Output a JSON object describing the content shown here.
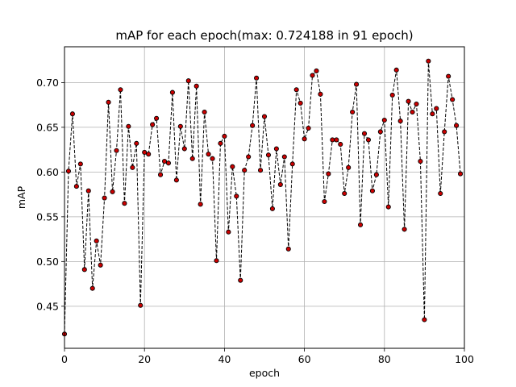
{
  "chart_data": {
    "type": "line",
    "title": "mAP for each epoch(max: 0.724188 in 91 epoch)",
    "xlabel": "epoch",
    "ylabel": "mAP",
    "xlim": [
      0,
      100
    ],
    "ylim": [
      0.403,
      0.74
    ],
    "xticks": [
      0,
      20,
      40,
      60,
      80,
      100
    ],
    "yticks": [
      0.45,
      0.5,
      0.55,
      0.6,
      0.65,
      0.7
    ],
    "grid": true,
    "series": [
      {
        "line_color": "#000000",
        "line_style": "dashed",
        "marker_face": "#cc0000",
        "marker_edge": "#000000",
        "x": [
          0,
          1,
          2,
          3,
          4,
          5,
          6,
          7,
          8,
          9,
          10,
          11,
          12,
          13,
          14,
          15,
          16,
          17,
          18,
          19,
          20,
          21,
          22,
          23,
          24,
          25,
          26,
          27,
          28,
          29,
          30,
          31,
          32,
          33,
          34,
          35,
          36,
          37,
          38,
          39,
          40,
          41,
          42,
          43,
          44,
          45,
          46,
          47,
          48,
          49,
          50,
          51,
          52,
          53,
          54,
          55,
          56,
          57,
          58,
          59,
          60,
          61,
          62,
          63,
          64,
          65,
          66,
          67,
          68,
          69,
          70,
          71,
          72,
          73,
          74,
          75,
          76,
          77,
          78,
          79,
          80,
          81,
          82,
          83,
          84,
          85,
          86,
          87,
          88,
          89,
          90,
          91,
          92,
          93,
          94,
          95,
          96,
          97,
          98,
          99
        ],
        "values": [
          0.419,
          0.601,
          0.665,
          0.584,
          0.609,
          0.491,
          0.579,
          0.47,
          0.523,
          0.496,
          0.571,
          0.678,
          0.578,
          0.624,
          0.692,
          0.565,
          0.651,
          0.605,
          0.632,
          0.451,
          0.622,
          0.62,
          0.653,
          0.66,
          0.597,
          0.612,
          0.61,
          0.689,
          0.591,
          0.651,
          0.626,
          0.702,
          0.615,
          0.696,
          0.564,
          0.667,
          0.62,
          0.615,
          0.501,
          0.632,
          0.64,
          0.533,
          0.606,
          0.573,
          0.479,
          0.602,
          0.617,
          0.652,
          0.705,
          0.602,
          0.662,
          0.619,
          0.559,
          0.626,
          0.586,
          0.617,
          0.514,
          0.609,
          0.692,
          0.677,
          0.637,
          0.649,
          0.708,
          0.713,
          0.687,
          0.567,
          0.598,
          0.636,
          0.636,
          0.631,
          0.576,
          0.605,
          0.667,
          0.698,
          0.541,
          0.643,
          0.636,
          0.579,
          0.597,
          0.645,
          0.658,
          0.561,
          0.686,
          0.714,
          0.657,
          0.536,
          0.679,
          0.667,
          0.676,
          0.612,
          0.435,
          0.724,
          0.665,
          0.671,
          0.576,
          0.645,
          0.707,
          0.681,
          0.652,
          0.598
        ]
      }
    ]
  }
}
